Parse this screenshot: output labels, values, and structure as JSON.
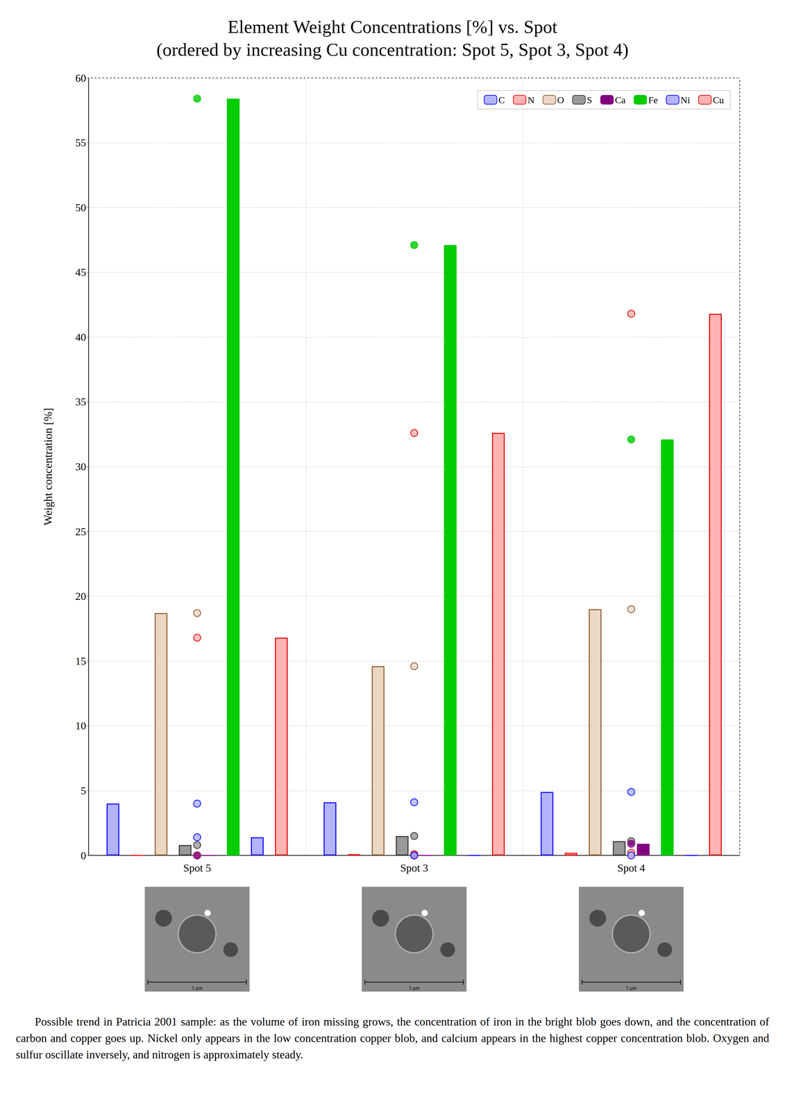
{
  "chart_data": {
    "type": "bar",
    "title": "Element Weight Concentrations [%] vs. Spot",
    "subtitle": "(ordered by increasing Cu concentration: Spot 5, Spot 3, Spot 4)",
    "y_label": "Weight concentration [%]",
    "categories": [
      "Spot 5",
      "Spot 3",
      "Spot 4"
    ],
    "series": [
      {
        "name": "C",
        "color": "#0000ff",
        "values": [
          4.0,
          4.1,
          4.9
        ]
      },
      {
        "name": "N",
        "color": "#ff0000",
        "values": [
          0.0,
          0.1,
          0.2
        ]
      },
      {
        "name": "O",
        "color": "#8b5a2b",
        "values": [
          18.7,
          14.6,
          19.0
        ]
      },
      {
        "name": "S",
        "color": "#333333",
        "values": [
          0.8,
          1.5,
          1.1
        ]
      },
      {
        "name": "Ca",
        "color": "#800080",
        "values": [
          0.0,
          0.0,
          0.9
        ]
      },
      {
        "name": "Fe",
        "color": "#00cc00",
        "values": [
          58.4,
          47.1,
          32.1
        ]
      },
      {
        "name": "Ni",
        "color": "#0000ff",
        "values": [
          1.4,
          0.0,
          0.0
        ]
      },
      {
        "name": "Cu",
        "color": "#dd0000",
        "values": [
          16.8,
          32.6,
          41.8
        ]
      }
    ],
    "ylim": [
      0,
      60
    ],
    "yticks": [
      0,
      5,
      10,
      15,
      20,
      25,
      30,
      35,
      40,
      45,
      50,
      55,
      60
    ],
    "grid": true,
    "legend": "top-right",
    "scale_bar_label": "5 µm",
    "caption": "Possible trend in Patricia 2001 sample: as the volume of iron missing grows, the concentration of iron in the bright blob goes down, and the concentration of carbon and copper goes up. Nickel only appears in the low concentration copper blob, and calcium appears in the highest copper concentration blob. Oxygen and sulfur oscillate inversely, and nitrogen is approximately steady."
  }
}
